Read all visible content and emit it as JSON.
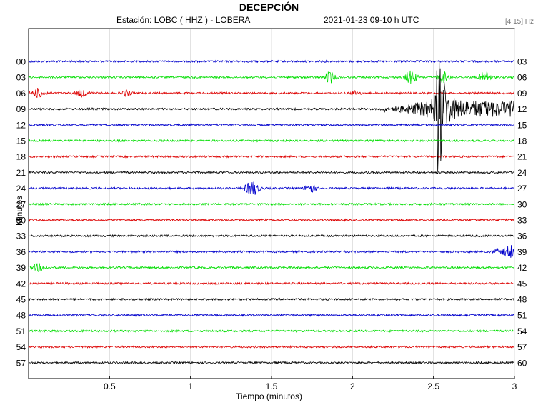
{
  "chart_data": {
    "type": "line",
    "title": "DECEPCIÓN",
    "station": "Estación:  LOBC ( HHZ ) - LOBERA",
    "datetime": "2021-01-23  09-10 h UTC",
    "band": "[4 15] Hz",
    "xlabel": "Tiempo (minutos)",
    "ylabel": "Minutos",
    "xlim": [
      0,
      3
    ],
    "x_ticks": [
      "0.5",
      "1",
      "1.5",
      "2",
      "2.5",
      "3"
    ],
    "left_labels": [
      "00",
      "03",
      "06",
      "09",
      "12",
      "15",
      "18",
      "21",
      "24",
      "27",
      "30",
      "33",
      "36",
      "39",
      "42",
      "45",
      "48",
      "51",
      "54",
      "57"
    ],
    "right_labels": [
      "03",
      "06",
      "09",
      "12",
      "15",
      "18",
      "21",
      "24",
      "27",
      "30",
      "33",
      "36",
      "39",
      "42",
      "45",
      "48",
      "51",
      "54",
      "57",
      "60"
    ],
    "trace_colors": [
      "#0000cc",
      "#00dd00",
      "#dd0000",
      "#000000"
    ],
    "grid": true,
    "events": [
      {
        "trace": "03",
        "x": 1.86,
        "amplitude": 8,
        "duration": 0.05
      },
      {
        "trace": "03",
        "x": 2.36,
        "amplitude": 9,
        "duration": 0.06
      },
      {
        "trace": "03",
        "x": 2.56,
        "amplitude": 7,
        "duration": 0.06
      },
      {
        "trace": "03",
        "x": 2.82,
        "amplitude": 8,
        "duration": 0.06
      },
      {
        "trace": "06",
        "x": 0.06,
        "amplitude": 6,
        "duration": 0.07
      },
      {
        "trace": "06",
        "x": 0.33,
        "amplitude": 5,
        "duration": 0.07
      },
      {
        "trace": "06",
        "x": 0.6,
        "amplitude": 4,
        "duration": 0.05
      },
      {
        "trace": "06",
        "x": 2.02,
        "amplitude": 3,
        "duration": 0.05
      },
      {
        "trace": "09",
        "x": 2.21,
        "amplitude": 14,
        "duration": 0.8,
        "type": "emergent"
      },
      {
        "trace": "09",
        "x": 2.53,
        "amplitude": 110,
        "duration": 0.15,
        "type": "spike"
      },
      {
        "trace": "24",
        "x": 1.38,
        "amplitude": 10,
        "duration": 0.07
      },
      {
        "trace": "24",
        "x": 1.74,
        "amplitude": 7,
        "duration": 0.05
      },
      {
        "trace": "36",
        "x": 2.9,
        "amplitude": 13,
        "duration": 0.25,
        "type": "emergent"
      },
      {
        "trace": "39",
        "x": 0.06,
        "amplitude": 5,
        "duration": 0.07
      }
    ]
  }
}
